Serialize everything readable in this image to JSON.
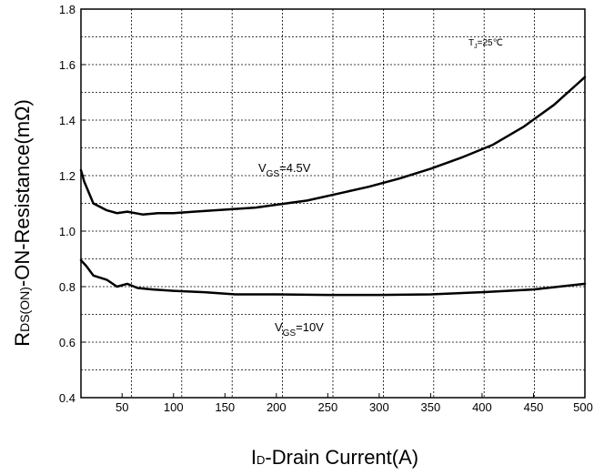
{
  "chart_data": {
    "type": "line",
    "xlabel_main": "I",
    "xlabel_sub": "D",
    "xlabel_rest": "-Drain Current(A)",
    "ylabel_main": "R",
    "ylabel_sub": "DS(ON)",
    "ylabel_rest": "-ON-Resistance(mΩ)",
    "xlim": [
      10,
      500
    ],
    "ylim": [
      0.4,
      1.8
    ],
    "x_ticks": [
      50,
      100,
      150,
      200,
      250,
      300,
      350,
      400,
      450,
      500
    ],
    "x_tick_labels": [
      "50",
      "100",
      "150",
      "200",
      "250",
      "300",
      "350",
      "400",
      "450",
      "500"
    ],
    "y_ticks": [
      0.4,
      0.6,
      0.8,
      1.0,
      1.2,
      1.4,
      1.6,
      1.8
    ],
    "y_tick_labels": [
      "0.4",
      "0.6",
      "0.8",
      "1.0",
      "1.2",
      "1.4",
      "1.6",
      "1.8"
    ],
    "grid": true,
    "grid_x": [
      10,
      59,
      108,
      157,
      206,
      255,
      304,
      353,
      402,
      451,
      500
    ],
    "grid_y": [
      0.5,
      0.6,
      0.7,
      0.8,
      0.9,
      1.0,
      1.1,
      1.2,
      1.3,
      1.4,
      1.5,
      1.6,
      1.7
    ],
    "series": [
      {
        "x": [
          10,
          13,
          22,
          35,
          45,
          55,
          70,
          85,
          100,
          120,
          140,
          160,
          180,
          200,
          230,
          260,
          290,
          320,
          350,
          380,
          410,
          440,
          470,
          500
        ],
        "values": [
          1.22,
          1.18,
          1.1,
          1.075,
          1.065,
          1.07,
          1.06,
          1.065,
          1.065,
          1.07,
          1.075,
          1.08,
          1.085,
          1.095,
          1.11,
          1.135,
          1.16,
          1.19,
          1.225,
          1.265,
          1.31,
          1.375,
          1.455,
          1.555
        ]
      },
      {
        "x": [
          10,
          15,
          22,
          35,
          45,
          55,
          65,
          80,
          100,
          130,
          160,
          200,
          250,
          300,
          350,
          400,
          450,
          500
        ],
        "values": [
          0.895,
          0.875,
          0.84,
          0.825,
          0.8,
          0.81,
          0.795,
          0.79,
          0.785,
          0.78,
          0.772,
          0.772,
          0.77,
          0.77,
          0.772,
          0.78,
          0.79,
          0.81
        ]
      }
    ],
    "annotations": {
      "vgs45_main": "V",
      "vgs45_sub": "GS",
      "vgs45_rest": "=4.5V",
      "vgs10_main": "V",
      "vgs10_sub": "GS",
      "vgs10_rest": "=10V",
      "tj_main": "T",
      "tj_sub": "J",
      "tj_rest": "=25℃"
    }
  }
}
